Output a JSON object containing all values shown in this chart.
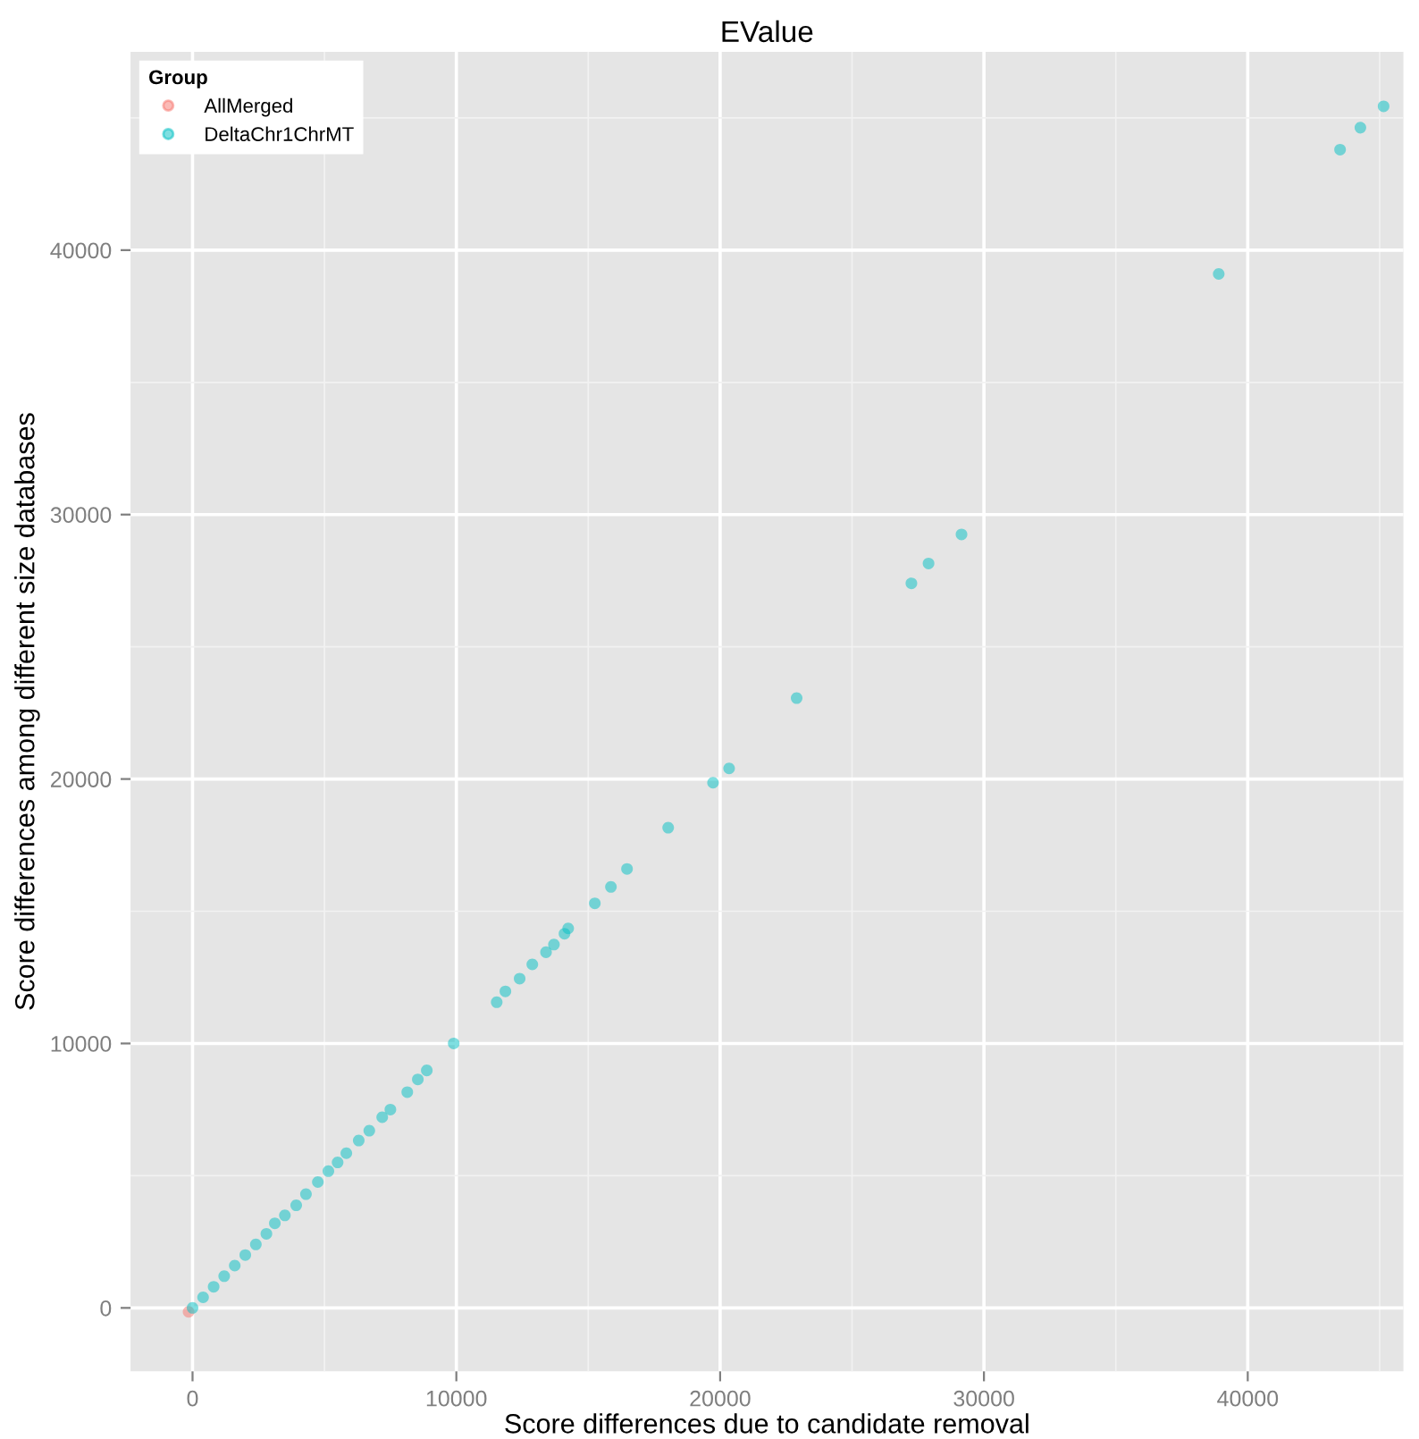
{
  "chart_data": {
    "type": "scatter",
    "title": "EValue",
    "xlabel": "Score differences due to candidate removal",
    "ylabel": "Score differences among different size databases",
    "legend_title": "Group",
    "legend": "top left",
    "grid": true,
    "marker": "circle",
    "xlim": [
      -2350,
      45900
    ],
    "ylim": [
      -2400,
      47500
    ],
    "xticks": [
      0,
      10000,
      20000,
      30000,
      40000
    ],
    "yticks": [
      0,
      10000,
      20000,
      30000,
      40000
    ],
    "series": [
      {
        "name": "AllMerged",
        "color": "#f8766d",
        "x": [
          -150
        ],
        "values": [
          -150
        ]
      },
      {
        "name": "DeltaChr1ChrMT",
        "color": "#00bfc4",
        "x": [
          0,
          400,
          800,
          1200,
          1600,
          2000,
          2400,
          2800,
          3120,
          3500,
          3930,
          4300,
          4750,
          5150,
          5500,
          5830,
          6300,
          6700,
          7190,
          7500,
          8140,
          8540,
          8880,
          9900,
          11530,
          11860,
          12400,
          12880,
          13400,
          13700,
          14100,
          14240,
          15250,
          15860,
          16470,
          18030,
          19730,
          20340,
          22900,
          27250,
          27900,
          29150,
          38900,
          43500,
          44270,
          45150
        ],
        "values": [
          0,
          400,
          800,
          1200,
          1600,
          2000,
          2400,
          2800,
          3200,
          3500,
          3880,
          4300,
          4760,
          5170,
          5500,
          5850,
          6330,
          6700,
          7210,
          7500,
          8160,
          8640,
          8980,
          10000,
          11560,
          11970,
          12450,
          12990,
          13450,
          13740,
          14150,
          14350,
          15300,
          15920,
          16600,
          18160,
          19860,
          20400,
          23060,
          27400,
          28150,
          29250,
          39100,
          43800,
          44630,
          45440
        ]
      }
    ]
  }
}
